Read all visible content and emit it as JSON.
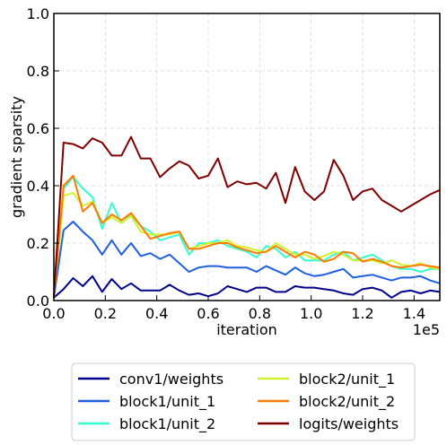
{
  "chart_data": {
    "type": "line",
    "xlabel": "iteration",
    "ylabel": "gradient sparsity",
    "x_offset_label": "1e5",
    "xlim": [
      0,
      150000
    ],
    "ylim": [
      0,
      1.0
    ],
    "x_ticks": [
      0,
      20000,
      40000,
      60000,
      80000,
      100000,
      120000,
      140000
    ],
    "x_tick_labels": [
      "0.0",
      "0.2",
      "0.4",
      "0.6",
      "0.8",
      "1.0",
      "1.2",
      "1.4"
    ],
    "y_ticks": [
      0,
      0.2,
      0.4,
      0.6,
      0.8,
      1.0
    ],
    "y_tick_labels": [
      "0.0",
      "0.2",
      "0.4",
      "0.6",
      "0.8",
      "1.0"
    ],
    "grid": true,
    "legend_position": "bottom-center",
    "x": [
      0,
      3750,
      7500,
      11250,
      15000,
      18750,
      22500,
      26250,
      30000,
      33750,
      37500,
      41250,
      45000,
      48750,
      52500,
      56250,
      60000,
      63750,
      67500,
      71250,
      75000,
      78750,
      82500,
      86250,
      90000,
      93750,
      97500,
      101250,
      105000,
      108750,
      112500,
      116250,
      120000,
      123750,
      127500,
      131250,
      135000,
      138750,
      142500,
      146250,
      150000
    ],
    "series": [
      {
        "name": "conv1/weights",
        "color": "#00008b",
        "values": [
          0.01,
          0.04,
          0.078,
          0.05,
          0.085,
          0.03,
          0.075,
          0.04,
          0.06,
          0.035,
          0.035,
          0.035,
          0.055,
          0.035,
          0.02,
          0.025,
          0.015,
          0.025,
          0.05,
          0.04,
          0.03,
          0.045,
          0.045,
          0.03,
          0.03,
          0.05,
          0.045,
          0.045,
          0.04,
          0.035,
          0.025,
          0.02,
          0.04,
          0.045,
          0.035,
          0.01,
          0.03,
          0.035,
          0.025,
          0.035,
          0.03
        ]
      },
      {
        "name": "block1/unit_1",
        "color": "#1f5fe0",
        "values": [
          0.01,
          0.245,
          0.275,
          0.24,
          0.21,
          0.16,
          0.21,
          0.16,
          0.2,
          0.155,
          0.165,
          0.145,
          0.16,
          0.13,
          0.1,
          0.115,
          0.12,
          0.12,
          0.115,
          0.115,
          0.115,
          0.1,
          0.12,
          0.105,
          0.09,
          0.115,
          0.095,
          0.085,
          0.09,
          0.1,
          0.11,
          0.08,
          0.085,
          0.09,
          0.08,
          0.07,
          0.08,
          0.08,
          0.085,
          0.07,
          0.06
        ]
      },
      {
        "name": "block1/unit_2",
        "color": "#33ffcc",
        "values": [
          0.01,
          0.39,
          0.43,
          0.39,
          0.36,
          0.25,
          0.34,
          0.27,
          0.3,
          0.26,
          0.24,
          0.21,
          0.22,
          0.23,
          0.16,
          0.2,
          0.2,
          0.21,
          0.19,
          0.18,
          0.17,
          0.15,
          0.19,
          0.18,
          0.15,
          0.17,
          0.14,
          0.14,
          0.14,
          0.16,
          0.17,
          0.14,
          0.15,
          0.16,
          0.14,
          0.12,
          0.11,
          0.11,
          0.1,
          0.11,
          0.11
        ]
      },
      {
        "name": "block2/unit_1",
        "color": "#d0f22a",
        "values": [
          0.01,
          0.365,
          0.375,
          0.33,
          0.345,
          0.27,
          0.29,
          0.27,
          0.295,
          0.24,
          0.23,
          0.23,
          0.23,
          0.24,
          0.18,
          0.19,
          0.2,
          0.2,
          0.21,
          0.19,
          0.185,
          0.175,
          0.17,
          0.2,
          0.18,
          0.16,
          0.16,
          0.145,
          0.155,
          0.17,
          0.16,
          0.14,
          0.14,
          0.14,
          0.13,
          0.14,
          0.125,
          0.12,
          0.13,
          0.115,
          0.11
        ]
      },
      {
        "name": "block2/unit_2",
        "color": "#ff7a00",
        "values": [
          0.01,
          0.4,
          0.435,
          0.31,
          0.34,
          0.27,
          0.3,
          0.28,
          0.305,
          0.26,
          0.215,
          0.225,
          0.235,
          0.24,
          0.18,
          0.18,
          0.19,
          0.2,
          0.2,
          0.185,
          0.175,
          0.165,
          0.17,
          0.19,
          0.17,
          0.15,
          0.17,
          0.16,
          0.135,
          0.145,
          0.17,
          0.165,
          0.135,
          0.145,
          0.135,
          0.12,
          0.115,
          0.12,
          0.125,
          0.12,
          0.115
        ]
      },
      {
        "name": "logits/weights",
        "color": "#800000",
        "values": [
          0.01,
          0.55,
          0.545,
          0.53,
          0.565,
          0.55,
          0.505,
          0.505,
          0.57,
          0.495,
          0.495,
          0.43,
          0.46,
          0.485,
          0.47,
          0.425,
          0.435,
          0.495,
          0.395,
          0.415,
          0.405,
          0.41,
          0.39,
          0.445,
          0.34,
          0.465,
          0.38,
          0.35,
          0.38,
          0.49,
          0.435,
          0.35,
          0.38,
          0.39,
          0.35,
          0.33,
          0.31,
          0.33,
          0.35,
          0.37,
          0.385
        ]
      }
    ]
  }
}
